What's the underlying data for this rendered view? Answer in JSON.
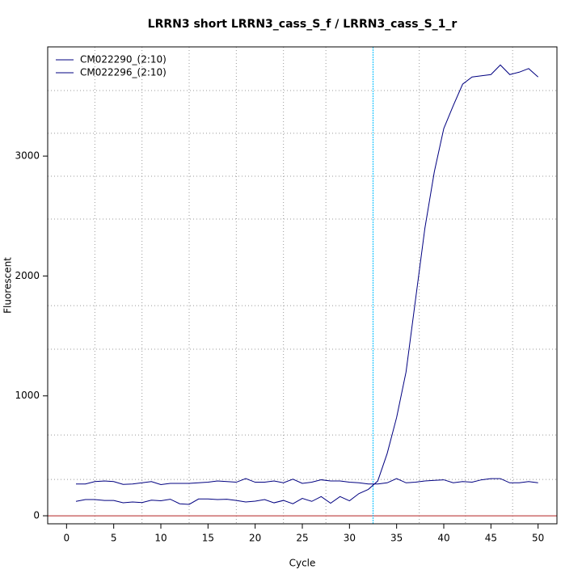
{
  "chart_data": {
    "type": "line",
    "title": "LRRN3 short LRRN3_cass_S_f / LRRN3_cass_S_1_r",
    "x_label": "Cycle",
    "y_label": "Fluorescent",
    "x": [
      1,
      2,
      3,
      4,
      5,
      6,
      7,
      8,
      9,
      10,
      11,
      12,
      13,
      14,
      15,
      16,
      17,
      18,
      19,
      20,
      21,
      22,
      23,
      24,
      25,
      26,
      27,
      28,
      29,
      30,
      31,
      32,
      33,
      34,
      35,
      36,
      37,
      38,
      39,
      40,
      41,
      42,
      43,
      44,
      45,
      46,
      47,
      48,
      49,
      50
    ],
    "series": [
      {
        "name": "CM022290_(2:10)",
        "color": "#000080",
        "values": [
          120,
          135,
          135,
          128,
          128,
          108,
          115,
          110,
          130,
          125,
          138,
          100,
          95,
          140,
          140,
          135,
          138,
          128,
          115,
          122,
          135,
          108,
          128,
          100,
          145,
          120,
          160,
          105,
          160,
          125,
          185,
          220,
          290,
          520,
          820,
          1200,
          1800,
          2400,
          2870,
          3230,
          3420,
          3600,
          3660,
          3670,
          3680,
          3760,
          3680,
          3700,
          3730,
          3660
        ]
      },
      {
        "name": "CM022296_(2:10)",
        "color": "#000080",
        "values": [
          265,
          265,
          285,
          290,
          285,
          262,
          265,
          275,
          285,
          260,
          270,
          270,
          270,
          275,
          280,
          290,
          285,
          280,
          310,
          280,
          280,
          290,
          275,
          305,
          270,
          280,
          300,
          290,
          290,
          280,
          275,
          265,
          265,
          275,
          310,
          275,
          280,
          290,
          295,
          300,
          275,
          285,
          280,
          300,
          310,
          310,
          275,
          275,
          285,
          275
        ]
      }
    ],
    "xlim": [
      -2,
      52
    ],
    "ylim": [
      -67,
      3911
    ],
    "xticks": [
      0,
      5,
      10,
      15,
      20,
      25,
      30,
      35,
      40,
      45,
      50
    ],
    "yticks": [
      0,
      1000,
      2000,
      3000
    ],
    "x_grid": [
      3,
      8,
      13,
      18,
      23,
      27.5,
      37.4,
      42.3,
      47.3
    ],
    "y_grid": [
      303,
      674,
      1389,
      1753,
      2475,
      2832,
      3190,
      3547
    ],
    "threshold_x": 32.5,
    "threshold_color": "#00bfff",
    "baseline_y": 0,
    "baseline_color": "#b22222",
    "legend": "top-left"
  }
}
